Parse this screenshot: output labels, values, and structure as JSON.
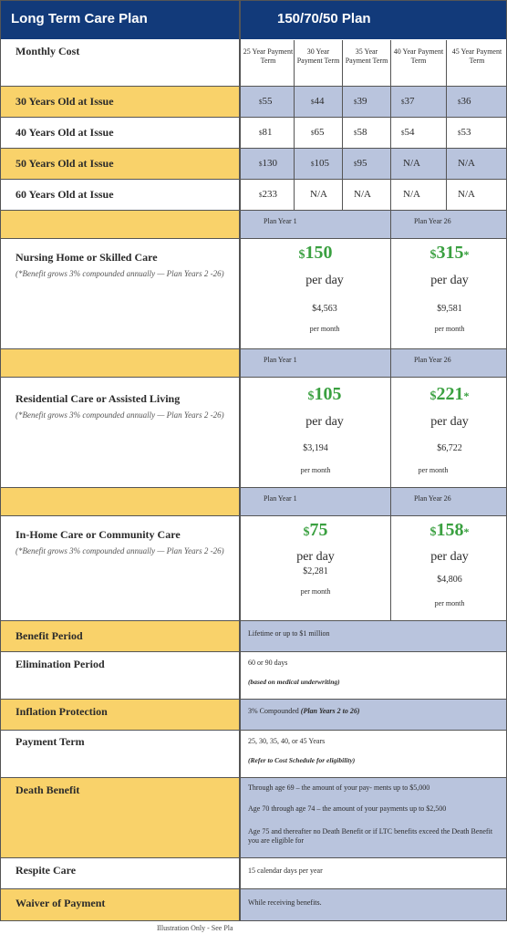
{
  "header": {
    "left_title": "Long Term Care Plan",
    "right_title": "150/70/50 Plan"
  },
  "cost_table": {
    "row_header": "Monthly Cost",
    "columns": [
      "25 Year Payment Term",
      "30 Year Payment Term",
      "35 Year Payment Term",
      "40 Year Payment Term",
      "45 Year Payment Term"
    ],
    "currency_symbol": "$",
    "rows": [
      {
        "label": "30 Years Old at Issue",
        "values": [
          "55",
          "44",
          "39",
          "37",
          "36"
        ]
      },
      {
        "label": "40 Years Old at Issue",
        "values": [
          "81",
          "65",
          "58",
          "54",
          "53"
        ]
      },
      {
        "label": "50 Years Old at Issue",
        "values": [
          "130",
          "105",
          "95",
          "N/A",
          "N/A"
        ]
      },
      {
        "label": "60 Years Old at Issue",
        "values": [
          "233",
          "N/A",
          "N/A",
          "N/A",
          "N/A"
        ]
      }
    ]
  },
  "benefits": [
    {
      "plan_year_left": "Plan Year 1",
      "plan_year_right": "Plan Year 26",
      "title": "Nursing Home or Skilled Care",
      "note": "(*Benefit grows 3% compounded annually — Plan Years 2 -26)",
      "left": {
        "daily": "150",
        "per_day": "per day",
        "monthly": "$4,563",
        "per_month": "per month"
      },
      "right": {
        "daily": "315",
        "star": "*",
        "per_day": "per day",
        "monthly": "$9,581",
        "per_month": "per month"
      }
    },
    {
      "plan_year_left": "Plan Year 1",
      "plan_year_right": "Plan Year 26",
      "title": "Residential Care or Assisted Living",
      "note": "(*Benefit grows 3% compounded annually — Plan Years 2 -26)",
      "left": {
        "daily": "105",
        "per_day": "per day",
        "monthly": "$3,194",
        "per_month": "per month"
      },
      "right": {
        "daily": "221",
        "star": "*",
        "per_day": "per day",
        "monthly": "$6,722",
        "per_month": "per month"
      }
    },
    {
      "plan_year_left": "Plan Year 1",
      "plan_year_right": "Plan Year 26",
      "title": "In-Home Care or Community Care",
      "note": "(*Benefit grows 3% compounded annually — Plan Years 2 -26)",
      "left": {
        "daily": "75",
        "per_day": "per day",
        "monthly": "$2,281",
        "per_month": "per month"
      },
      "right": {
        "daily": "158",
        "star": "*",
        "per_day": "per day",
        "monthly": "$4,806",
        "per_month": "per month"
      }
    }
  ],
  "details": {
    "benefit_period": {
      "label": "Benefit Period",
      "value": "Lifetime or up to $1 million"
    },
    "elimination_period": {
      "label": "Elimination Period",
      "value": "60 or 90 days",
      "note": "(based on medical underwriting)"
    },
    "inflation_protection": {
      "label": "Inflation Protection",
      "value": "3% Compounded",
      "note": "(Plan Years 2 to 26)"
    },
    "payment_term": {
      "label": "Payment Term",
      "value": "25, 30, 35, 40, or 45 Years",
      "note": "(Refer to Cost Schedule for eligibility)"
    },
    "death_benefit": {
      "label": "Death Benefit",
      "lines": [
        "Through age 69 – the amount of your pay- ments up to $5,000",
        "Age 70 through age 74 – the amount of your payments up to $2,500",
        "Age 75 and thereafter no Death Benefit or if LTC benefits exceed the Death Benefit you are eligible for"
      ]
    },
    "respite_care": {
      "label": "Respite Care",
      "value": "15 calendar days per year"
    },
    "waiver_of_payment": {
      "label": "Waiver of Payment",
      "value": "While receiving benefits."
    }
  },
  "footer": "Illustration Only - See Pla",
  "colors": {
    "header": "#123a7a",
    "highlight": "#f9d26a",
    "blue_band": "#b9c4dd",
    "green": "#3aa040"
  }
}
